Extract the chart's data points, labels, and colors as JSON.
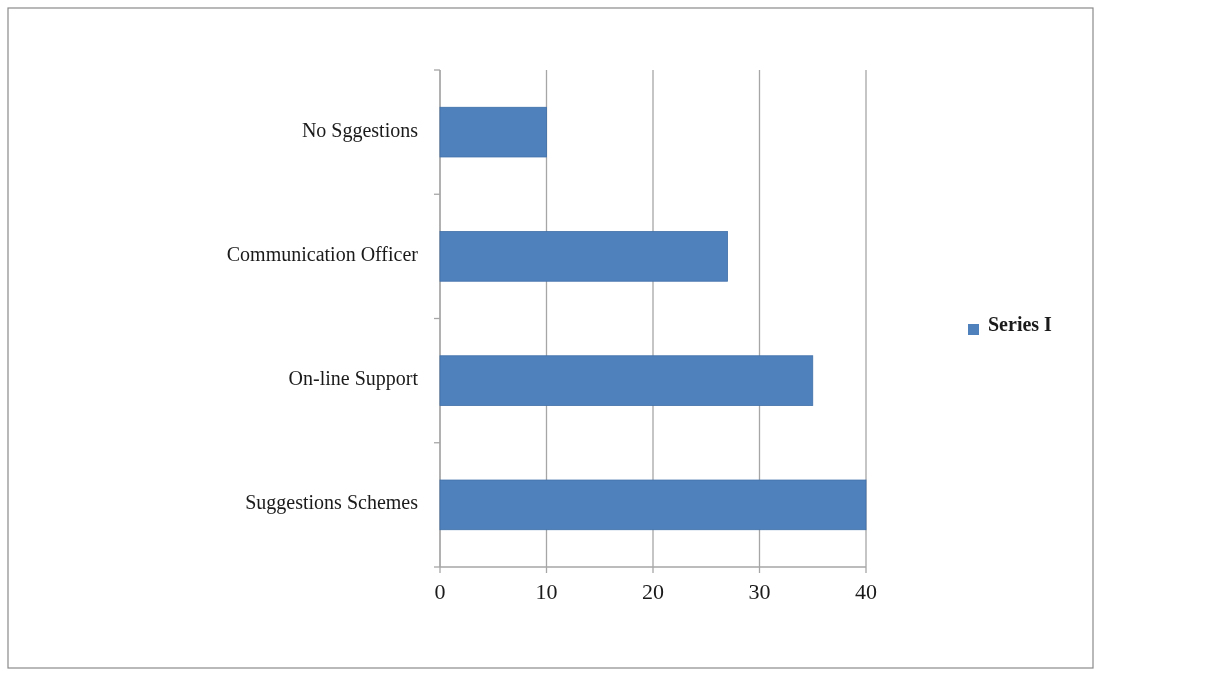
{
  "chart_data": {
    "type": "bar",
    "orientation": "horizontal",
    "categories": [
      "No Sggestions",
      "Communication Officer",
      "On-line Support",
      "Suggestions Schemes"
    ],
    "series": [
      {
        "name": "Series I",
        "color": "#4f81bd",
        "values": [
          10,
          27,
          35,
          40
        ]
      }
    ],
    "xlim": [
      0,
      40
    ],
    "xticks": [
      0,
      10,
      20,
      30,
      40
    ],
    "grid": "x",
    "legend": "right"
  }
}
